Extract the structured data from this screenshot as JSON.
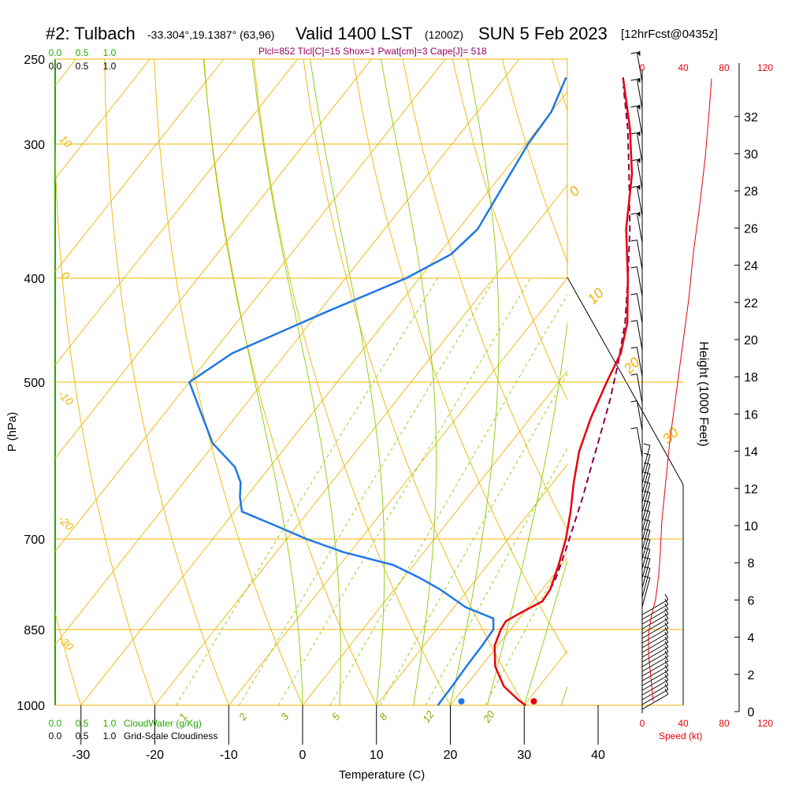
{
  "header": {
    "station": "#2: Tulbach",
    "coords": "-33.304°,19.1387° (63,96)",
    "valid": "Valid 1400 LST",
    "utc": "(1200Z)",
    "date": "SUN 5 Feb 2023",
    "forecast": "[12hrFcst@0435z]",
    "params": "Plcl=852 Tlcl[C]=15 Shox=1 Pwat[cm]=3 Cape[J]= 518"
  },
  "colors": {
    "isobar": "#f0b400",
    "dry_adiabat": "#f0b400",
    "moist_adiabat": "#88cc00",
    "mixing_ratio": "#88cc00",
    "temperature": "#e8000b",
    "dewpoint": "#1f77e8",
    "parcel": "#880055",
    "cloud": "#22aa00",
    "wind": "#000000",
    "speed": "#e8000b"
  },
  "chart_data": {
    "type": "line",
    "subtype": "skew-t log-p sounding",
    "xlabel": "Temperature (C)",
    "ylabel": "P (hPa)",
    "right_label": "Height (1000 Feet)",
    "x_ticks": [
      "-30",
      "-20",
      "-10",
      "0",
      "10",
      "20",
      "30",
      "40"
    ],
    "p_ticks": [
      "250",
      "300",
      "400",
      "500",
      "700",
      "850",
      "1000"
    ],
    "height_ticks": [
      "0",
      "2",
      "4",
      "6",
      "8",
      "10",
      "12",
      "14",
      "16",
      "18",
      "20",
      "22",
      "24",
      "26",
      "28",
      "30",
      "32"
    ],
    "speed_ticks": [
      "0",
      "40",
      "80",
      "120"
    ],
    "speed_label": "Speed (kt)",
    "cloud_ticks": [
      "0.0",
      "0.5",
      "1.0"
    ],
    "cloud_water_label": "CloudWater (g/Kg)",
    "cloudiness_label": "Grid-Scale Cloudiness",
    "temperature_series": [
      {
        "p": 1000,
        "t": 30.2
      },
      {
        "p": 990,
        "t": 28.8
      },
      {
        "p": 960,
        "t": 25.2
      },
      {
        "p": 920,
        "t": 21.9
      },
      {
        "p": 880,
        "t": 19.6
      },
      {
        "p": 850,
        "t": 18.7
      },
      {
        "p": 835,
        "t": 18.5
      },
      {
        "p": 820,
        "t": 19.6
      },
      {
        "p": 800,
        "t": 21.3
      },
      {
        "p": 780,
        "t": 21.1
      },
      {
        "p": 740,
        "t": 19.6
      },
      {
        "p": 700,
        "t": 17.8
      },
      {
        "p": 660,
        "t": 15.5
      },
      {
        "p": 620,
        "t": 12.8
      },
      {
        "p": 580,
        "t": 10.2
      },
      {
        "p": 540,
        "t": 8.2
      },
      {
        "p": 500,
        "t": 6.5
      },
      {
        "p": 470,
        "t": 5.3
      },
      {
        "p": 440,
        "t": 2.9
      },
      {
        "p": 400,
        "t": -1.8
      },
      {
        "p": 360,
        "t": -7.3
      },
      {
        "p": 320,
        "t": -12.4
      },
      {
        "p": 290,
        "t": -17.6
      },
      {
        "p": 260,
        "t": -24.0
      }
    ],
    "dewpoint_series": [
      {
        "p": 1000,
        "t": 18.3
      },
      {
        "p": 960,
        "t": 18.2
      },
      {
        "p": 920,
        "t": 18.0
      },
      {
        "p": 880,
        "t": 17.9
      },
      {
        "p": 850,
        "t": 17.7
      },
      {
        "p": 830,
        "t": 16.5
      },
      {
        "p": 810,
        "t": 11.5
      },
      {
        "p": 780,
        "t": 6.2
      },
      {
        "p": 760,
        "t": 2.0
      },
      {
        "p": 740,
        "t": -2.8
      },
      {
        "p": 720,
        "t": -10.9
      },
      {
        "p": 700,
        "t": -17.3
      },
      {
        "p": 680,
        "t": -23.0
      },
      {
        "p": 660,
        "t": -29.0
      },
      {
        "p": 640,
        "t": -30.8
      },
      {
        "p": 620,
        "t": -32.3
      },
      {
        "p": 600,
        "t": -34.7
      },
      {
        "p": 570,
        "t": -40.3
      },
      {
        "p": 500,
        "t": -50.0
      },
      {
        "p": 470,
        "t": -47.3
      },
      {
        "p": 430,
        "t": -39.0
      },
      {
        "p": 400,
        "t": -31.8
      },
      {
        "p": 380,
        "t": -28.3
      },
      {
        "p": 360,
        "t": -27.4
      },
      {
        "p": 330,
        "t": -28.5
      },
      {
        "p": 300,
        "t": -29.7
      },
      {
        "p": 280,
        "t": -30.0
      },
      {
        "p": 260,
        "t": -31.7
      }
    ],
    "parcel_series": [
      {
        "p": 780,
        "t": 21.1
      },
      {
        "p": 760,
        "t": 20.6
      },
      {
        "p": 720,
        "t": 19.1
      },
      {
        "p": 680,
        "t": 17.4
      },
      {
        "p": 640,
        "t": 15.6
      },
      {
        "p": 600,
        "t": 13.5
      },
      {
        "p": 560,
        "t": 11.3
      },
      {
        "p": 520,
        "t": 8.9
      },
      {
        "p": 480,
        "t": 6.0
      },
      {
        "p": 440,
        "t": 2.6
      },
      {
        "p": 400,
        "t": -1.8
      },
      {
        "p": 360,
        "t": -6.8
      },
      {
        "p": 320,
        "t": -12.8
      },
      {
        "p": 290,
        "t": -17.9
      },
      {
        "p": 265,
        "t": -23.0
      }
    ],
    "surface_temperature": 31.3,
    "surface_dewpoint": 21.5,
    "isobars": [
      250,
      300,
      400,
      500,
      700,
      850,
      1000
    ],
    "dry_adiabat_labels": [
      {
        "p": 300,
        "text": "10"
      },
      {
        "p": 400,
        "text": "0"
      },
      {
        "p": 520,
        "text": "-10"
      },
      {
        "p": 680,
        "text": "-20"
      },
      {
        "p": 880,
        "text": "-30"
      }
    ],
    "moist_adiabat_labels": [
      "0",
      "10",
      "20",
      "30"
    ],
    "mixing_ratio_labels": [
      "1",
      "2",
      "3",
      "5",
      "8",
      "12",
      "20"
    ]
  }
}
